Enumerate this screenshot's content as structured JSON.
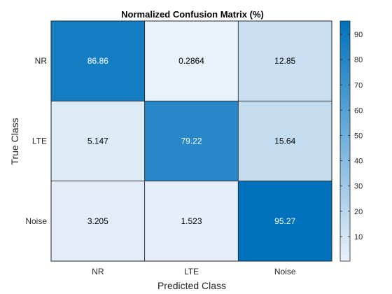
{
  "chart_data": {
    "type": "heatmap",
    "title": "Normalized Confusion Matrix (%)",
    "xlabel": "Predicted Class",
    "ylabel": "True Class",
    "x_categories": [
      "NR",
      "LTE",
      "Noise"
    ],
    "y_categories": [
      "NR",
      "LTE",
      "Noise"
    ],
    "values": [
      [
        86.86,
        0.2864,
        12.85
      ],
      [
        5.147,
        79.22,
        15.64
      ],
      [
        3.205,
        1.523,
        95.27
      ]
    ],
    "value_labels": [
      [
        "86.86",
        "0.2864",
        "12.85"
      ],
      [
        "5.147",
        "79.22",
        "15.64"
      ],
      [
        "3.205",
        "1.523",
        "95.27"
      ]
    ],
    "colorbar": {
      "range": [
        0.2864,
        95.27
      ],
      "ticks": [
        10,
        20,
        30,
        40,
        50,
        60,
        70,
        80,
        90
      ],
      "color_low": "#E9F1FA",
      "color_high": "#0072BD"
    },
    "grid": false
  }
}
